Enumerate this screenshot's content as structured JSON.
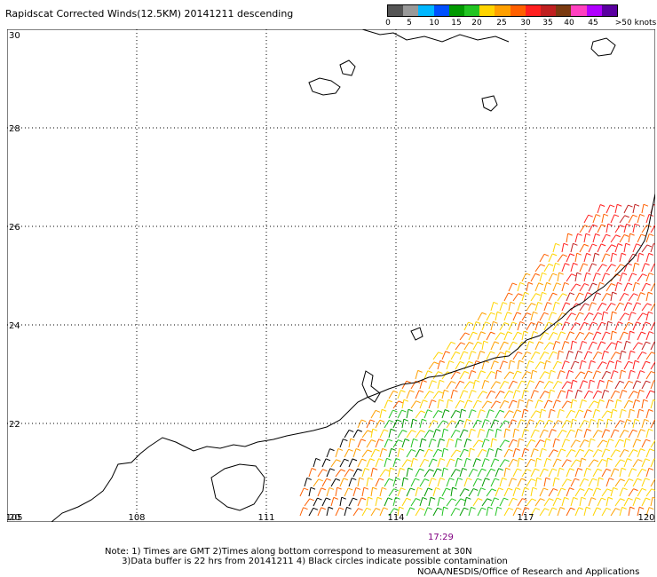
{
  "title": "Rapidscat Corrected Winds(12.5KM) 20141211 descending",
  "legend": {
    "colors": [
      "#555555",
      "#999999",
      "#00b7ff",
      "#0050ff",
      "#009900",
      "#22c422",
      "#ffd400",
      "#ffa000",
      "#ff6000",
      "#ff2020",
      "#c02020",
      "#7a3a10",
      "#ff40c0",
      "#b000ff",
      "#5a00a0"
    ],
    "labels": [
      "0",
      "5",
      "10",
      "15",
      "20",
      "25",
      "30",
      "35",
      "40",
      "45",
      ">50 knots"
    ]
  },
  "axes": {
    "x_ticks": [
      "105",
      "108",
      "111",
      "114",
      "117",
      "120"
    ],
    "y_ticks": [
      "30",
      "28",
      "26",
      "24",
      "22",
      "20"
    ],
    "lon_range": [
      105,
      120
    ],
    "lat_range": [
      20,
      30
    ]
  },
  "time_label": "17:29",
  "note": "Note: 1) Times are GMT 2)Times along bottom correspond to measurement at 30N\n      3)Data buffer is 22 hrs from 20141211 4) Black circles indicate possible contamination",
  "credit": "NOAA/NESDIS/Office of Research and Applications"
}
